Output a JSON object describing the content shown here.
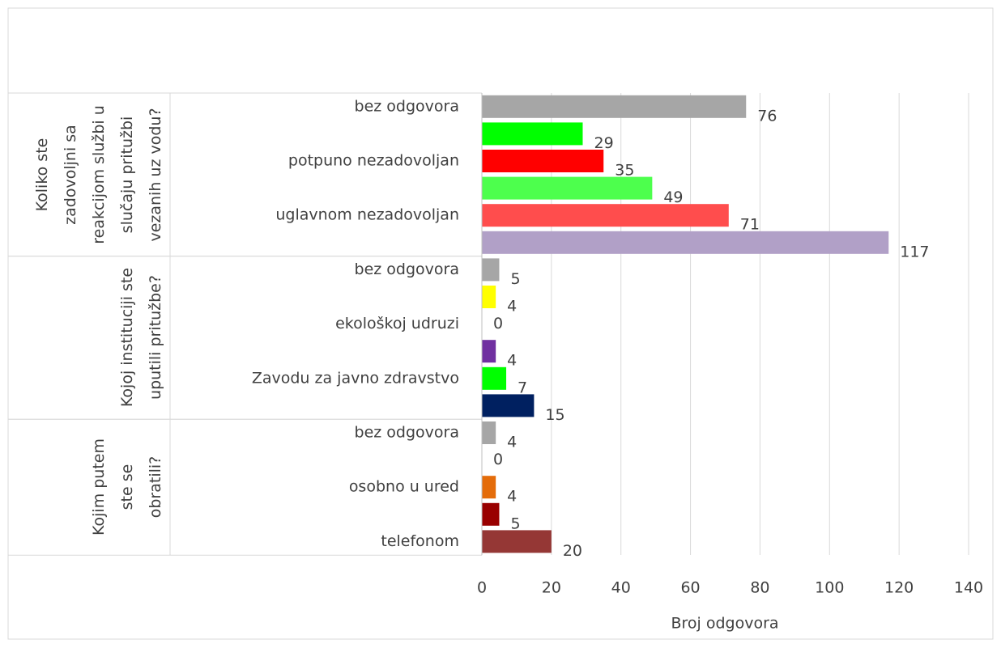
{
  "chart_data": {
    "type": "bar",
    "orientation": "horizontal",
    "x_label": "Broj odgovora",
    "xlim": [
      0,
      140
    ],
    "xticks": [
      0,
      20,
      40,
      60,
      80,
      100,
      120,
      140
    ],
    "grid": true,
    "groups": [
      {
        "label": "Koliko ste zadovoljni sa reakcijom službi u slučaju pritužbi vezanih uz vodu?",
        "categories": [
          "bez odgovora",
          null,
          "potpuno nezadovoljan",
          null,
          "uglavnom nezadovoljan",
          null
        ],
        "values": [
          76,
          29,
          35,
          49,
          71,
          117
        ],
        "colors": [
          "#a6a6a6",
          "#00ff00",
          "#ff0000",
          "#4dff4d",
          "#ff4d4d",
          "#b1a0c7"
        ]
      },
      {
        "label": "Kojoj instituciji ste uputili pritužbe?",
        "categories": [
          "bez odgovora",
          null,
          "ekološkoj udruzi",
          null,
          "Zavodu za javno zdravstvo",
          null
        ],
        "values": [
          5,
          4,
          0,
          4,
          7,
          15
        ],
        "colors": [
          "#a6a6a6",
          "#ffff00",
          "#7f7f7f",
          "#7030a0",
          "#00ff00",
          "#002060"
        ]
      },
      {
        "label": "Kojim putem ste se obratili?",
        "categories": [
          "bez odgovora",
          null,
          "osobno u ured",
          null,
          "telefonom"
        ],
        "values": [
          4,
          0,
          4,
          5,
          20
        ],
        "colors": [
          "#a6a6a6",
          "#7f7f7f",
          "#e46c0a",
          "#990000",
          "#953735"
        ]
      }
    ]
  }
}
